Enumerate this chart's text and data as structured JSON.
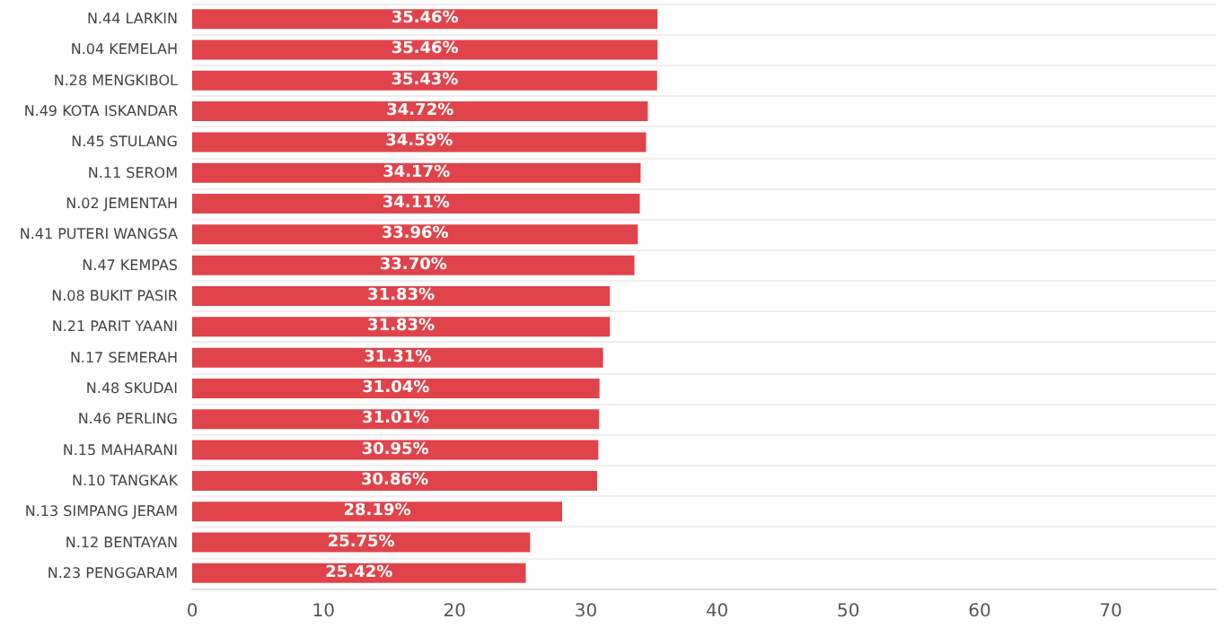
{
  "chart_data": {
    "type": "bar",
    "orientation": "horizontal",
    "categories": [
      "N.44 LARKIN",
      "N.04 KEMELAH",
      "N.28 MENGKIBOL",
      "N.49 KOTA ISKANDAR",
      "N.45 STULANG",
      "N.11 SEROM",
      "N.02 JEMENTAH",
      "N.41 PUTERI WANGSA",
      "N.47 KEMPAS",
      "N.08 BUKIT PASIR",
      "N.21 PARIT YAANI",
      "N.17 SEMERAH",
      "N.48 SKUDAI",
      "N.46 PERLING",
      "N.15 MAHARANI",
      "N.10 TANGKAK",
      "N.13 SIMPANG JERAM",
      "N.12 BENTAYAN",
      "N.23 PENGGARAM"
    ],
    "values": [
      35.46,
      35.46,
      35.43,
      34.72,
      34.59,
      34.17,
      34.11,
      33.96,
      33.7,
      31.83,
      31.83,
      31.31,
      31.04,
      31.01,
      30.95,
      30.86,
      28.19,
      25.75,
      25.42
    ],
    "value_labels": [
      "35.46%",
      "35.46%",
      "35.43%",
      "34.72%",
      "34.59%",
      "34.17%",
      "34.11%",
      "33.96%",
      "33.70%",
      "31.83%",
      "31.83%",
      "31.31%",
      "31.04%",
      "31.01%",
      "30.95%",
      "30.86%",
      "28.19%",
      "25.75%",
      "25.42%"
    ],
    "color": "#e0434a",
    "xlim": [
      0,
      78
    ],
    "xticks": [
      0,
      10,
      20,
      30,
      40,
      50,
      60,
      70
    ],
    "grid": "y"
  }
}
